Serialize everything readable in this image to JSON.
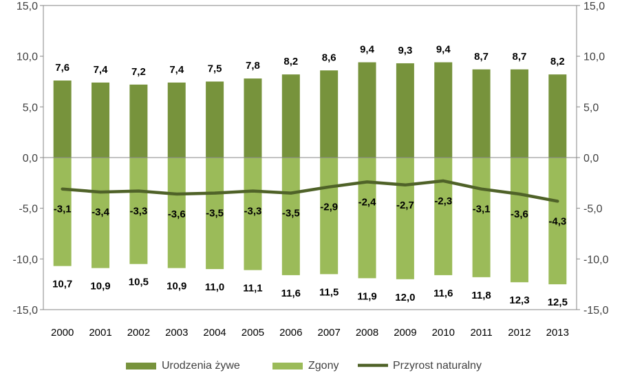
{
  "chart_data": {
    "type": "bar",
    "categories": [
      "2000",
      "2001",
      "2002",
      "2003",
      "2004",
      "2005",
      "2006",
      "2007",
      "2008",
      "2009",
      "2010",
      "2011",
      "2012",
      "2013"
    ],
    "series": [
      {
        "name": "Urodzenia żywe",
        "type": "bar",
        "values": [
          7.6,
          7.4,
          7.2,
          7.4,
          7.5,
          7.8,
          8.2,
          8.6,
          9.4,
          9.3,
          9.4,
          8.7,
          8.7,
          8.2
        ],
        "labels": [
          "7,6",
          "7,4",
          "7,2",
          "7,4",
          "7,5",
          "7,8",
          "8,2",
          "8,6",
          "9,4",
          "9,3",
          "9,4",
          "8,7",
          "8,7",
          "8,2"
        ]
      },
      {
        "name": "Zgony",
        "type": "bar",
        "values": [
          -10.7,
          -10.9,
          -10.5,
          -10.9,
          -11.0,
          -11.1,
          -11.6,
          -11.5,
          -11.9,
          -12.0,
          -11.6,
          -11.8,
          -12.3,
          -12.5
        ],
        "labels": [
          "10,7",
          "10,9",
          "10,5",
          "10,9",
          "11,0",
          "11,1",
          "11,6",
          "11,5",
          "11,9",
          "12,0",
          "11,6",
          "11,8",
          "12,3",
          "12,5"
        ]
      },
      {
        "name": "Przyrost naturalny",
        "type": "line",
        "values": [
          -3.1,
          -3.4,
          -3.3,
          -3.6,
          -3.5,
          -3.3,
          -3.5,
          -2.9,
          -2.4,
          -2.7,
          -2.3,
          -3.1,
          -3.6,
          -4.3
        ],
        "labels": [
          "-3,1",
          "-3,4",
          "-3,3",
          "-3,6",
          "-3,5",
          "-3,3",
          "-3,5",
          "-2,9",
          "-2,4",
          "-2,7",
          "-2,3",
          "-3,1",
          "-3,6",
          "-4,3"
        ]
      }
    ],
    "ylim": [
      -15,
      15
    ],
    "yticks": [
      15,
      10,
      5,
      0,
      -5,
      -10,
      -15
    ],
    "ytick_labels": [
      "15,0",
      "10,0",
      "5,0",
      "0,0",
      "-5,0",
      "-10,0",
      "-15,0"
    ],
    "secondary_y_axis": true,
    "grid": false,
    "legend_position": "bottom",
    "colors": {
      "Urodzenia żywe": "#77933c",
      "Zgony": "#9bbb59",
      "Przyrost naturalny": "#4f6228",
      "axis": "#868686"
    }
  }
}
